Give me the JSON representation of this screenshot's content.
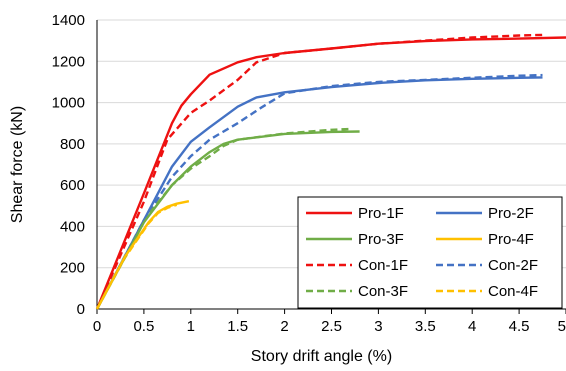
{
  "chart_data": {
    "type": "line",
    "xlabel": "Story drift angle (%)",
    "ylabel": "Shear force (kN)",
    "xlim": [
      0,
      5
    ],
    "ylim": [
      0,
      1400
    ],
    "xticks": [
      "0",
      "0.5",
      "1",
      "1.5",
      "2",
      "2.5",
      "3",
      "3.5",
      "4",
      "4.5",
      "5"
    ],
    "yticks": [
      "0",
      "200",
      "400",
      "600",
      "800",
      "1000",
      "1200",
      "1400"
    ],
    "grid": "horizontal",
    "legend_position": "bottom-right",
    "series": [
      {
        "name": "Pro-1F",
        "color": "#ee1111",
        "dash": "solid",
        "points": [
          [
            0,
            0
          ],
          [
            0.5,
            560
          ],
          [
            0.8,
            900
          ],
          [
            0.9,
            985
          ],
          [
            1.0,
            1040
          ],
          [
            1.2,
            1135
          ],
          [
            1.5,
            1195
          ],
          [
            1.7,
            1220
          ],
          [
            2.0,
            1240
          ],
          [
            2.5,
            1262
          ],
          [
            3.0,
            1285
          ],
          [
            3.5,
            1298
          ],
          [
            4.0,
            1306
          ],
          [
            4.5,
            1310
          ],
          [
            5.0,
            1315
          ]
        ]
      },
      {
        "name": "Pro-2F",
        "color": "#4472c4",
        "dash": "solid",
        "points": [
          [
            0,
            0
          ],
          [
            0.5,
            430
          ],
          [
            0.8,
            690
          ],
          [
            1.0,
            810
          ],
          [
            1.2,
            880
          ],
          [
            1.5,
            980
          ],
          [
            1.7,
            1025
          ],
          [
            2.0,
            1050
          ],
          [
            2.5,
            1075
          ],
          [
            3.0,
            1095
          ],
          [
            3.5,
            1108
          ],
          [
            4.0,
            1115
          ],
          [
            4.5,
            1120
          ],
          [
            4.75,
            1122
          ]
        ]
      },
      {
        "name": "Pro-3F",
        "color": "#70ad47",
        "dash": "solid",
        "points": [
          [
            0,
            0
          ],
          [
            0.5,
            420
          ],
          [
            0.8,
            600
          ],
          [
            1.0,
            690
          ],
          [
            1.2,
            760
          ],
          [
            1.35,
            800
          ],
          [
            1.5,
            820
          ],
          [
            2.0,
            848
          ],
          [
            2.5,
            858
          ],
          [
            2.8,
            860
          ]
        ]
      },
      {
        "name": "Pro-4F",
        "color": "#ffc000",
        "dash": "solid",
        "points": [
          [
            0,
            0
          ],
          [
            0.3,
            255
          ],
          [
            0.55,
            420
          ],
          [
            0.65,
            470
          ],
          [
            0.75,
            495
          ],
          [
            0.85,
            510
          ],
          [
            0.98,
            522
          ]
        ]
      },
      {
        "name": "Con-1F",
        "color": "#ee1111",
        "dash": "dashed",
        "points": [
          [
            0,
            0
          ],
          [
            0.5,
            520
          ],
          [
            0.75,
            820
          ],
          [
            1.0,
            950
          ],
          [
            1.2,
            1010
          ],
          [
            1.5,
            1110
          ],
          [
            1.7,
            1195
          ],
          [
            2.0,
            1240
          ],
          [
            2.5,
            1262
          ],
          [
            3.0,
            1285
          ],
          [
            3.5,
            1300
          ],
          [
            4.0,
            1315
          ],
          [
            4.5,
            1325
          ],
          [
            4.75,
            1328
          ]
        ]
      },
      {
        "name": "Con-2F",
        "color": "#4472c4",
        "dash": "dashed",
        "points": [
          [
            0,
            0
          ],
          [
            0.5,
            430
          ],
          [
            0.8,
            640
          ],
          [
            1.0,
            740
          ],
          [
            1.2,
            820
          ],
          [
            1.5,
            900
          ],
          [
            1.75,
            975
          ],
          [
            2.0,
            1045
          ],
          [
            2.5,
            1080
          ],
          [
            3.0,
            1100
          ],
          [
            3.5,
            1110
          ],
          [
            4.0,
            1120
          ],
          [
            4.5,
            1130
          ],
          [
            4.75,
            1133
          ]
        ]
      },
      {
        "name": "Con-3F",
        "color": "#70ad47",
        "dash": "dashed",
        "points": [
          [
            0,
            0
          ],
          [
            0.5,
            430
          ],
          [
            0.8,
            600
          ],
          [
            1.0,
            680
          ],
          [
            1.2,
            740
          ],
          [
            1.35,
            790
          ],
          [
            1.5,
            820
          ],
          [
            2.0,
            850
          ],
          [
            2.5,
            868
          ],
          [
            2.7,
            872
          ]
        ]
      },
      {
        "name": "Con-4F",
        "color": "#ffc000",
        "dash": "dashed",
        "points": [
          [
            0,
            0
          ],
          [
            0.3,
            250
          ],
          [
            0.55,
            415
          ],
          [
            0.65,
            465
          ],
          [
            0.75,
            490
          ],
          [
            0.85,
            505
          ]
        ]
      }
    ]
  }
}
